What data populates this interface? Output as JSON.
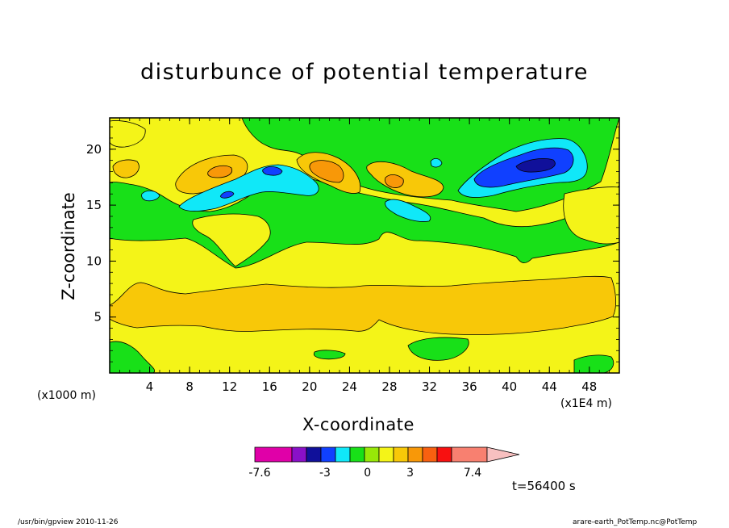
{
  "chart_data": {
    "type": "heatmap",
    "title": "disturbunce of potential temperature",
    "xlabel": "X-coordinate",
    "ylabel": "Z-coordinate",
    "x_unit_left": "(x1000 m)",
    "x_unit_right": "(x1E4 m)",
    "xlim": [
      0,
      51
    ],
    "ylim": [
      0,
      22.8
    ],
    "x_ticks": [
      4,
      8,
      12,
      16,
      20,
      24,
      28,
      32,
      36,
      40,
      44,
      48
    ],
    "y_ticks": [
      5,
      10,
      15,
      20
    ],
    "colorbar": {
      "colors": [
        "#e000a8",
        "#8a10c8",
        "#10109a",
        "#1040ff",
        "#10e8f8",
        "#18e018",
        "#98e808",
        "#f4f418",
        "#f8c808",
        "#f89808",
        "#f86010",
        "#f81010",
        "#f88070",
        "#f8c0c0"
      ],
      "tick_labels": [
        "-7.6",
        "-3",
        "0",
        "3",
        "7.4"
      ],
      "tick_values": [
        -7.6,
        -3,
        0,
        3,
        7.4
      ]
    },
    "time_label": "t=56400 s",
    "colors": {
      "background_level": "#f4f418",
      "band_positive": "#f8c808",
      "peak_positive": "#f89808",
      "green": "#18e018",
      "cyan": "#10e8f8",
      "blue": "#1040ff",
      "navy": "#10109a"
    }
  },
  "footer": {
    "left": "/usr/bin/gpview   2010-11-26",
    "right": "arare-earth_PotTemp.nc@PotTemp"
  }
}
